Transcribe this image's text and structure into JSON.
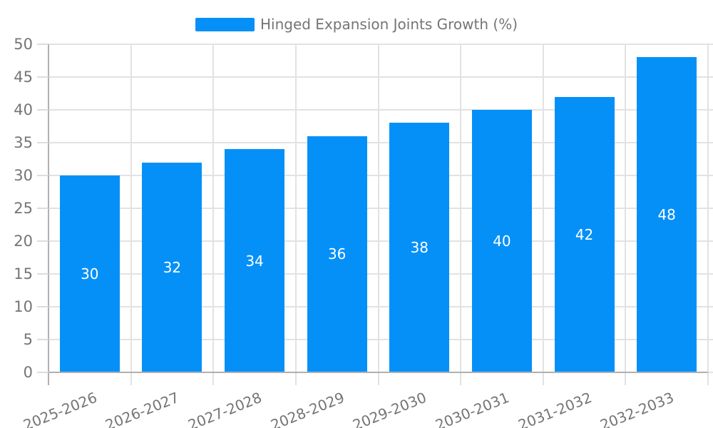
{
  "legend": {
    "label": "Hinged Expansion Joints Growth (%)"
  },
  "colors": {
    "bar": "#0590f8",
    "axis_line": "#b0b0b0",
    "grid_line": "#e2e2e2",
    "tick_line": "#dcdcdc",
    "text": "#757575",
    "value_text": "#ffffff",
    "background": "#ffffff"
  },
  "chart_data": {
    "type": "bar",
    "title": "",
    "xlabel": "",
    "ylabel": "",
    "series_name": "Hinged Expansion Joints Growth (%)",
    "categories": [
      "2025-2026",
      "2026-2027",
      "2027-2028",
      "2028-2029",
      "2029-2030",
      "2030-2031",
      "2031-2032",
      "2032-2033"
    ],
    "values": [
      30,
      32,
      34,
      36,
      38,
      40,
      42,
      48
    ],
    "value_labels_shown": true,
    "value_label_position": "inside-center",
    "ylim": [
      0,
      50
    ],
    "yticks": [
      0,
      5,
      10,
      15,
      20,
      25,
      30,
      35,
      40,
      45,
      50
    ],
    "grid": true,
    "legend_position": "top-center",
    "x_label_rotation_deg": -22
  }
}
